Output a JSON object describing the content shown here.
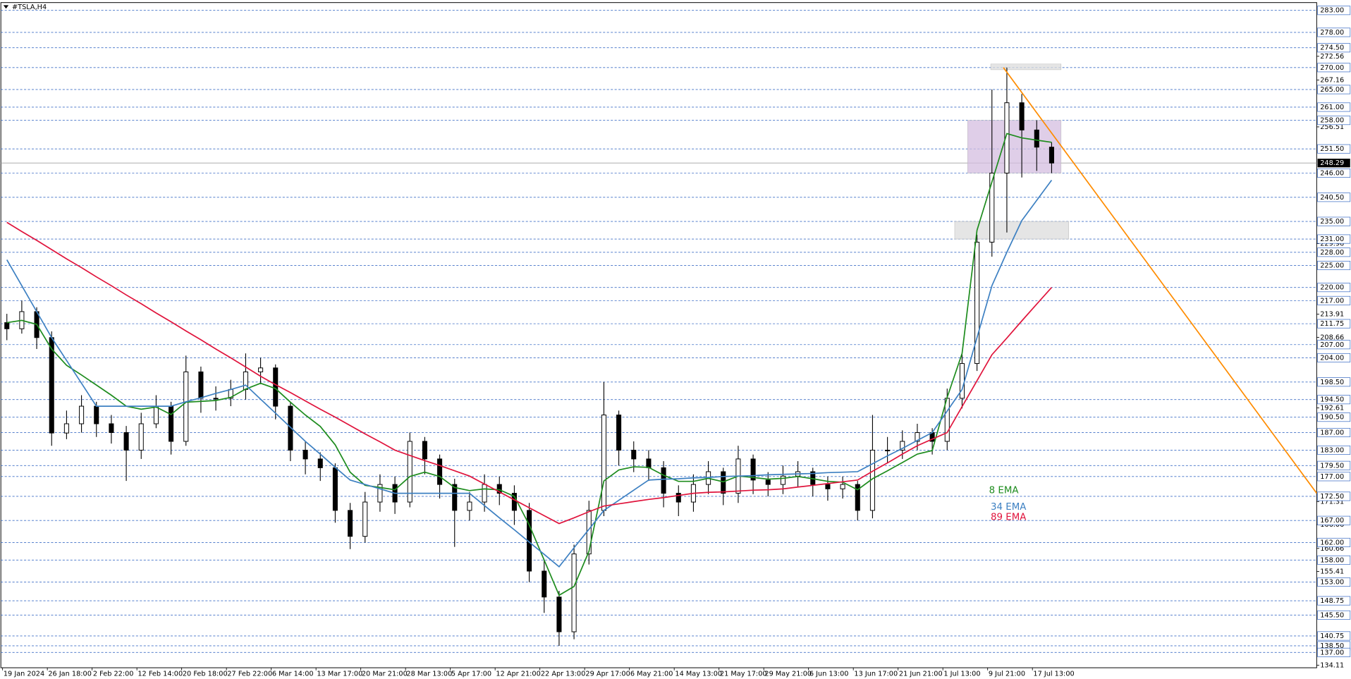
{
  "chart_data": {
    "type": "candlestick",
    "title": "#TSLA,H4",
    "categories": [
      "19 Jan 2024",
      null,
      null,
      "26 Jan 18:00",
      null,
      null,
      "2 Feb 22:00",
      null,
      null,
      "12 Feb 14:00",
      null,
      null,
      "20 Feb 18:00",
      null,
      null,
      "27 Feb 22:00",
      null,
      null,
      "6 Mar 14:00",
      null,
      null,
      "13 Mar 17:00",
      null,
      null,
      "20 Mar 21:00",
      null,
      null,
      "28 Mar 13:00",
      null,
      null,
      "5 Apr 17:00",
      null,
      null,
      "12 Apr 21:00",
      null,
      null,
      "22 Apr 13:00",
      null,
      null,
      "29 Apr 17:00",
      null,
      null,
      "6 May 21:00",
      null,
      null,
      "14 May 13:00",
      null,
      null,
      "21 May 17:00",
      null,
      null,
      "29 May 21:00",
      null,
      null,
      "6 Jun 13:00",
      null,
      null,
      "13 Jun 17:00",
      null,
      null,
      "21 Jun 21:00",
      null,
      null,
      "1 Jul 13:00",
      null,
      null,
      "9 Jul 21:00",
      null,
      null,
      "17 Jul 13:00",
      null
    ],
    "open": [
      212,
      210.6,
      214.5,
      208.6,
      186.9,
      189,
      193,
      189,
      187,
      183,
      189,
      193,
      185,
      200.8,
      194.8,
      194.8,
      196.8,
      200.8,
      201.7,
      193,
      183,
      181,
      179,
      169.3,
      163.4,
      171.2,
      175.2,
      171.2,
      185,
      181,
      175.2,
      169.3,
      171.2,
      175.2,
      173.2,
      169.3,
      155.5,
      149.6,
      141.7,
      159.4,
      169.3,
      191,
      183,
      181,
      179,
      173.2,
      171.2,
      175.2,
      178.1,
      173.2,
      181,
      176.2,
      175.2,
      177.1,
      178.1,
      175.2,
      174.2,
      175.2,
      169.3,
      183,
      183,
      185,
      187,
      185,
      194.8,
      202.7,
      230.3,
      246,
      262,
      255.8,
      251.9
    ],
    "high": [
      214,
      217,
      215.5,
      210,
      192,
      195.5,
      194,
      191,
      188.5,
      191.5,
      195.5,
      194,
      204.5,
      202,
      197.5,
      199,
      205,
      204,
      202.5,
      194,
      185,
      182.5,
      180,
      171,
      173.5,
      177.5,
      177,
      187,
      186,
      182,
      176.5,
      173.5,
      177.5,
      177,
      175,
      171,
      158,
      151,
      161.5,
      171.5,
      198.5,
      192,
      185,
      183,
      180.5,
      175,
      177.5,
      180.5,
      179,
      184,
      182,
      178,
      179.5,
      180.5,
      179,
      177,
      177,
      176,
      191,
      186,
      187.5,
      189,
      188,
      197,
      205,
      232,
      265,
      270,
      264,
      258,
      253
    ],
    "low": [
      208,
      209.5,
      206,
      184,
      185.5,
      187,
      186,
      184.5,
      176,
      181,
      188,
      182,
      184,
      191.5,
      192,
      193,
      194.5,
      198,
      190,
      180.5,
      177.5,
      176,
      166.5,
      160.5,
      162,
      169,
      168.5,
      170,
      177.5,
      172,
      161,
      167,
      169,
      170.5,
      166,
      153,
      146,
      138.5,
      140,
      157,
      168,
      179.5,
      178,
      176,
      170,
      168,
      169,
      173,
      170.5,
      171,
      173,
      172.5,
      173,
      174.5,
      172.5,
      171.5,
      172,
      167,
      167.5,
      180,
      181,
      183,
      182,
      183,
      192.5,
      201,
      227,
      232.5,
      245,
      246.5,
      246
    ],
    "close": [
      210.6,
      214.5,
      208.6,
      186.9,
      189,
      193,
      189,
      187,
      183,
      189,
      193,
      185,
      200.8,
      194.8,
      194.8,
      196.8,
      200.8,
      201.7,
      193,
      183,
      181,
      179,
      169.3,
      163.4,
      171.2,
      175.2,
      171.2,
      185,
      181,
      175.2,
      169.3,
      171.2,
      175.2,
      173.2,
      169.3,
      155.5,
      149.6,
      141.7,
      159.4,
      169.3,
      191,
      183,
      181,
      179,
      173.2,
      171.2,
      175.2,
      178.1,
      173.2,
      181,
      176.2,
      175.2,
      177.1,
      178.1,
      175.2,
      174.2,
      175.2,
      169.3,
      183,
      183,
      185,
      187,
      185,
      194.8,
      202.7,
      230.3,
      246,
      262,
      255.8,
      251.9,
      248.29
    ],
    "series": [
      {
        "name": "8 EMA",
        "color": "#1e8c1e",
        "values": [
          212,
          212.5,
          211.6,
          206,
          202.3,
          200.1,
          197.8,
          195.5,
          193,
          192.3,
          192.8,
          191.1,
          193.9,
          194.1,
          194.3,
          195,
          196.9,
          198.2,
          197,
          193.9,
          191,
          188.4,
          184.2,
          178,
          175,
          174.5,
          174,
          177,
          178,
          177,
          174.5,
          173.8,
          174.2,
          174,
          172.5,
          166,
          158,
          150,
          152,
          160,
          176,
          178.5,
          179.2,
          179.1,
          177.3,
          175.9,
          175.9,
          176.6,
          175.8,
          177.1,
          176.8,
          176.4,
          176.6,
          177,
          176.5,
          175.9,
          175.7,
          174,
          176.5,
          178.3,
          180.2,
          182.1,
          182.9,
          195,
          205,
          233,
          244,
          255,
          254,
          253.5,
          253
        ]
      },
      {
        "name": "34 EMA",
        "color": "#3d80c2",
        "values": [
          226.3,
          220.4,
          214.5,
          208.6,
          203.4,
          198.2,
          193,
          193,
          193,
          193,
          193,
          193,
          194,
          194.9,
          195.9,
          196.8,
          197.8,
          194.6,
          191.4,
          188.2,
          185,
          182.1,
          179.1,
          176.2,
          175.2,
          174.2,
          173.2,
          173.2,
          173.2,
          173.2,
          173.2,
          173.2,
          170.4,
          167.6,
          164.9,
          162.1,
          159.3,
          156.5,
          160.8,
          165,
          169.3,
          171.6,
          173.9,
          176.2,
          176.4,
          176.5,
          176.7,
          176.8,
          177,
          177.1,
          177.2,
          177.4,
          177.5,
          177.6,
          177.7,
          177.9,
          178,
          178.1,
          179.9,
          181.7,
          183.4,
          185.2,
          187,
          191.9,
          196.8,
          208.6,
          220.4,
          228,
          235.2,
          239.8,
          244.4
        ]
      },
      {
        "name": "89 EMA",
        "color": "#e0143c",
        "values": [
          234.8,
          232.7,
          230.7,
          228.6,
          226.5,
          224.5,
          222.4,
          220.4,
          218.3,
          216.3,
          214.2,
          212.2,
          210.1,
          208.1,
          206,
          204,
          201.9,
          199.8,
          197.9,
          196.1,
          194.2,
          192.3,
          190.5,
          188.6,
          186.7,
          184.9,
          183,
          181.8,
          180.6,
          179.5,
          178.3,
          177.1,
          175.3,
          173.5,
          171.7,
          169.9,
          168.1,
          166.3,
          167.6,
          169,
          170.3,
          170.8,
          171.3,
          171.8,
          172.2,
          172.7,
          173.2,
          173.4,
          173.5,
          173.7,
          173.9,
          174,
          174.2,
          174.6,
          175,
          175.4,
          175.8,
          176.2,
          178.2,
          180.1,
          182.1,
          184,
          185.5,
          187,
          192.9,
          198.8,
          204.7,
          208.5,
          212.4,
          216.2,
          220
        ]
      }
    ],
    "ylim": [
      133.52,
      284.77
    ],
    "yticks": [
      272.56,
      267.16,
      256.51,
      229.96,
      213.91,
      208.66,
      192.61,
      171.31,
      166.06,
      160.66,
      155.41,
      134.11
    ],
    "levels": [
      {
        "value": 283,
        "label": "283.00"
      },
      {
        "value": 278,
        "label": "278.00"
      },
      {
        "value": 274.5,
        "label": "274.50"
      },
      {
        "value": 270,
        "label": "270.00"
      },
      {
        "value": 265,
        "label": "265.00"
      },
      {
        "value": 261,
        "label": "261.00"
      },
      {
        "value": 258,
        "label": "258.00"
      },
      {
        "value": 251.5,
        "label": "251.50"
      },
      {
        "value": 246,
        "label": "246.00"
      },
      {
        "value": 240.5,
        "label": "240.50"
      },
      {
        "value": 235,
        "label": "235.00"
      },
      {
        "value": 231,
        "label": "231.00"
      },
      {
        "value": 228,
        "label": "228.00"
      },
      {
        "value": 225,
        "label": "225.00"
      },
      {
        "value": 220,
        "label": "220.00"
      },
      {
        "value": 217,
        "label": "217.00"
      },
      211.75,
      {
        "value": 207,
        "label": "207.00"
      },
      {
        "value": 204,
        "label": "204.00"
      },
      {
        "value": 198.5,
        "label": "198.50"
      },
      {
        "value": 194.5,
        "label": "194.50"
      },
      {
        "value": 190.5,
        "label": "190.50"
      },
      {
        "value": 187,
        "label": "187.00"
      },
      {
        "value": 183,
        "label": "183.00"
      },
      {
        "value": 179.5,
        "label": "179.50"
      },
      {
        "value": 177,
        "label": "177.00"
      },
      {
        "value": 172.5,
        "label": "172.50"
      },
      {
        "value": 167,
        "label": "167.00"
      },
      {
        "value": 162,
        "label": "162.00"
      },
      {
        "value": 158,
        "label": "158.00"
      },
      {
        "value": 153,
        "label": "153.00"
      },
      148.75,
      {
        "value": 145.5,
        "label": "145.50"
      },
      {
        "value": 140.75,
        "label": "140.75"
      },
      {
        "value": 138.5,
        "label": "138.50"
      },
      {
        "value": 137,
        "label": "137.00"
      }
    ],
    "current_price": 248.29,
    "zones": [
      {
        "from": 246,
        "to": 258,
        "color": "#d4bde0"
      },
      {
        "from": 269.5,
        "to": 270.8,
        "color": "#dcdcdc"
      },
      {
        "from": 231,
        "to": 235,
        "color": "#dcdcdc"
      }
    ],
    "trendline": {
      "start": 270,
      "end": 173.2,
      "color": "#ff8c00"
    }
  }
}
